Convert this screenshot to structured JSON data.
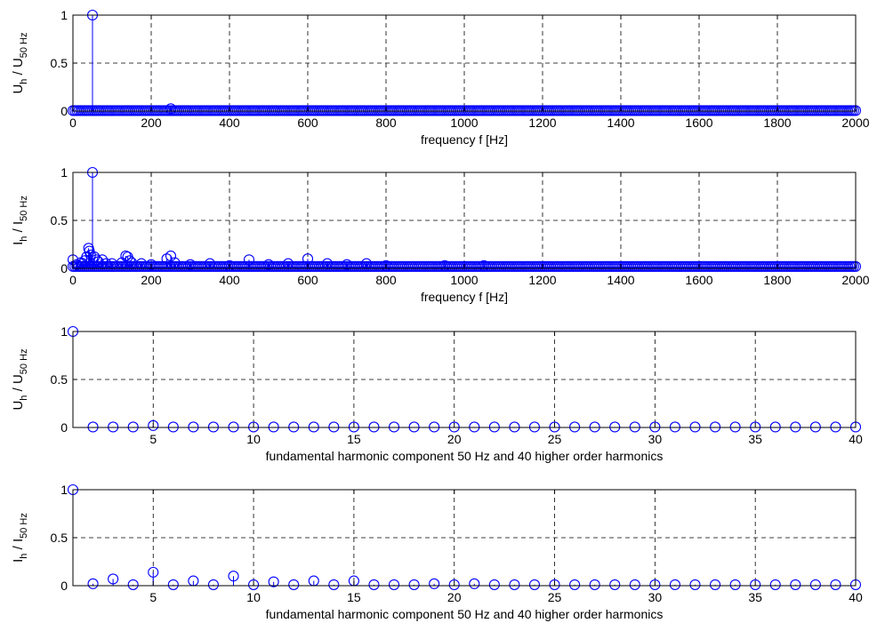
{
  "chart_data": [
    {
      "type": "stem",
      "ylabel": {
        "base": "U",
        "sub1": "h",
        "sep": " / U",
        "sub2": "50 Hz"
      },
      "xlabel": "frequency  f  [Hz]",
      "xlim": [
        0,
        2000
      ],
      "ylim": [
        0,
        1
      ],
      "xticks": [
        0,
        200,
        400,
        600,
        800,
        1000,
        1200,
        1400,
        1600,
        1800,
        2000
      ],
      "yticks": [
        0,
        0.5,
        1
      ],
      "ytick_labels": [
        "0",
        "0.5",
        "1"
      ],
      "grid": true,
      "baseline": {
        "from": 0,
        "to": 2000,
        "step": 5,
        "value": 0.005
      },
      "points": [
        [
          50,
          1.0
        ],
        [
          250,
          0.025
        ]
      ]
    },
    {
      "type": "stem",
      "ylabel": {
        "base": "I",
        "sub1": "h",
        "sep": " / I",
        "sub2": "50 Hz"
      },
      "xlabel": "frequency  f  [Hz]",
      "xlim": [
        0,
        2000
      ],
      "ylim": [
        0,
        1
      ],
      "xticks": [
        0,
        200,
        400,
        600,
        800,
        1000,
        1200,
        1400,
        1600,
        1800,
        2000
      ],
      "yticks": [
        0,
        0.5,
        1
      ],
      "ytick_labels": [
        "0",
        "0.5",
        "1"
      ],
      "grid": true,
      "baseline": {
        "from": 0,
        "to": 2000,
        "step": 5,
        "value": 0.02
      },
      "points": [
        [
          0,
          0.09
        ],
        [
          10,
          0.04
        ],
        [
          20,
          0.06
        ],
        [
          25,
          0.05
        ],
        [
          30,
          0.08
        ],
        [
          35,
          0.12
        ],
        [
          40,
          0.21
        ],
        [
          42,
          0.18
        ],
        [
          45,
          0.14
        ],
        [
          50,
          1.0
        ],
        [
          55,
          0.12
        ],
        [
          60,
          0.09
        ],
        [
          65,
          0.07
        ],
        [
          75,
          0.09
        ],
        [
          85,
          0.05
        ],
        [
          100,
          0.05
        ],
        [
          125,
          0.06
        ],
        [
          135,
          0.13
        ],
        [
          140,
          0.12
        ],
        [
          145,
          0.08
        ],
        [
          150,
          0.06
        ],
        [
          175,
          0.05
        ],
        [
          200,
          0.04
        ],
        [
          240,
          0.1
        ],
        [
          250,
          0.13
        ],
        [
          260,
          0.06
        ],
        [
          300,
          0.04
        ],
        [
          350,
          0.05
        ],
        [
          400,
          0.03
        ],
        [
          450,
          0.09
        ],
        [
          500,
          0.04
        ],
        [
          550,
          0.05
        ],
        [
          600,
          0.1
        ],
        [
          650,
          0.05
        ],
        [
          700,
          0.04
        ],
        [
          750,
          0.05
        ],
        [
          800,
          0.03
        ],
        [
          950,
          0.03
        ],
        [
          1050,
          0.03
        ]
      ]
    },
    {
      "type": "stem",
      "ylabel": {
        "base": "U",
        "sub1": "h",
        "sep": " / U",
        "sub2": "50 Hz"
      },
      "xlabel": "fundamental harmonic component 50 Hz and 40 higher order harmonics",
      "xlim": [
        1,
        40
      ],
      "ylim": [
        0,
        1
      ],
      "xticks": [
        5,
        10,
        15,
        20,
        25,
        30,
        35,
        40
      ],
      "yticks": [
        0,
        0.5,
        1
      ],
      "ytick_labels": [
        "0",
        "0.5",
        "1"
      ],
      "grid": true,
      "x": [
        1,
        2,
        3,
        4,
        5,
        6,
        7,
        8,
        9,
        10,
        11,
        12,
        13,
        14,
        15,
        16,
        17,
        18,
        19,
        20,
        21,
        22,
        23,
        24,
        25,
        26,
        27,
        28,
        29,
        30,
        31,
        32,
        33,
        34,
        35,
        36,
        37,
        38,
        39,
        40
      ],
      "y": [
        1.0,
        0.005,
        0.005,
        0.005,
        0.02,
        0.005,
        0.005,
        0.005,
        0.005,
        0.005,
        0.005,
        0.005,
        0.005,
        0.005,
        0.005,
        0.005,
        0.005,
        0.005,
        0.005,
        0.005,
        0.005,
        0.005,
        0.005,
        0.005,
        0.005,
        0.005,
        0.005,
        0.005,
        0.005,
        0.005,
        0.005,
        0.005,
        0.005,
        0.005,
        0.005,
        0.005,
        0.005,
        0.005,
        0.005,
        0.005
      ]
    },
    {
      "type": "stem",
      "ylabel": {
        "base": "I",
        "sub1": "h",
        "sep": " / I",
        "sub2": "50 Hz"
      },
      "xlabel": "fundamental harmonic component 50 Hz and 40 higher order harmonics",
      "xlim": [
        1,
        40
      ],
      "ylim": [
        0,
        1
      ],
      "xticks": [
        5,
        10,
        15,
        20,
        25,
        30,
        35,
        40
      ],
      "yticks": [
        0,
        0.5,
        1
      ],
      "ytick_labels": [
        "0",
        "0.5",
        "1"
      ],
      "grid": true,
      "x": [
        1,
        2,
        3,
        4,
        5,
        6,
        7,
        8,
        9,
        10,
        11,
        12,
        13,
        14,
        15,
        16,
        17,
        18,
        19,
        20,
        21,
        22,
        23,
        24,
        25,
        26,
        27,
        28,
        29,
        30,
        31,
        32,
        33,
        34,
        35,
        36,
        37,
        38,
        39,
        40
      ],
      "y": [
        1.0,
        0.02,
        0.07,
        0.01,
        0.14,
        0.01,
        0.05,
        0.01,
        0.1,
        0.01,
        0.04,
        0.01,
        0.05,
        0.01,
        0.05,
        0.01,
        0.01,
        0.01,
        0.02,
        0.01,
        0.02,
        0.01,
        0.01,
        0.01,
        0.01,
        0.01,
        0.01,
        0.01,
        0.01,
        0.01,
        0.01,
        0.01,
        0.01,
        0.01,
        0.01,
        0.01,
        0.01,
        0.01,
        0.01,
        0.01
      ]
    }
  ],
  "colors": {
    "stem": "#0000ff",
    "axis": "#000000",
    "grid": "#000000",
    "background": "#ffffff"
  }
}
